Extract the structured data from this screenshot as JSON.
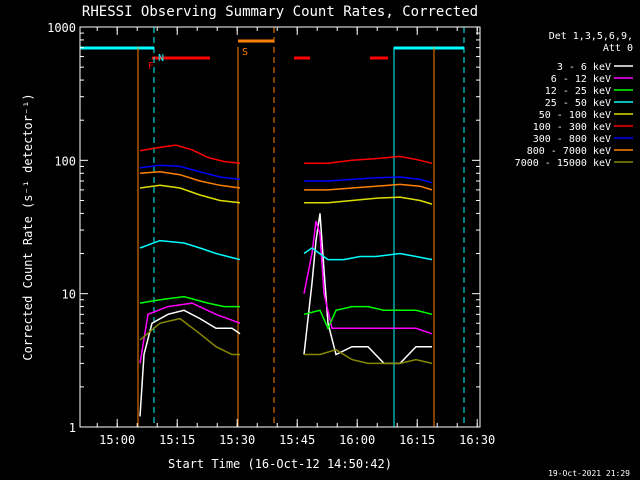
{
  "chart_data": {
    "type": "line",
    "title": "RHESSI Observing Summary Count Rates, Corrected",
    "xlabel": "Start Time (16-Oct-12 14:50:42)",
    "ylabel": "Corrected Count Rate (s⁻¹ detector⁻¹)",
    "y_scale": "log",
    "ylim": [
      1,
      1000
    ],
    "xlim_minutes_after_start": [
      0,
      100
    ],
    "x_tick_labels": [
      "15:00",
      "15:15",
      "15:30",
      "15:45",
      "16:00",
      "16:15",
      "16:30"
    ],
    "x_tick_minutes": [
      9.3,
      24.3,
      39.3,
      54.3,
      69.3,
      84.3,
      99.3
    ],
    "y_tick_labels": [
      "1",
      "10",
      "100",
      "1000"
    ],
    "y_tick_values": [
      1,
      10,
      100,
      1000
    ],
    "legend_header": [
      "Det 1,3,5,6,9,",
      "Att 0"
    ],
    "legend_placement": "right",
    "series": [
      {
        "name": "3 - 6 keV",
        "color": "#ffffff",
        "segments": [
          [
            [
              15,
              1.2
            ],
            [
              16,
              3.5
            ],
            [
              18,
              6
            ],
            [
              22,
              7
            ],
            [
              26,
              7.5
            ],
            [
              30,
              6.5
            ],
            [
              34,
              5.5
            ],
            [
              38,
              5.5
            ],
            [
              40,
              5
            ]
          ],
          [
            [
              56,
              3.5
            ],
            [
              58,
              12
            ],
            [
              59,
              25
            ],
            [
              60,
              40
            ],
            [
              61,
              15
            ],
            [
              62,
              6
            ],
            [
              64,
              3.5
            ],
            [
              68,
              4
            ],
            [
              72,
              4
            ],
            [
              76,
              3
            ],
            [
              80,
              3
            ],
            [
              84,
              4
            ],
            [
              88,
              4
            ]
          ]
        ]
      },
      {
        "name": "6 - 12 keV",
        "color": "#ff00ff",
        "segments": [
          [
            [
              15,
              3
            ],
            [
              17,
              7
            ],
            [
              22,
              8
            ],
            [
              28,
              8.5
            ],
            [
              34,
              7
            ],
            [
              40,
              6
            ]
          ],
          [
            [
              56,
              10
            ],
            [
              58,
              20
            ],
            [
              59,
              35
            ],
            [
              60,
              28
            ],
            [
              61,
              10
            ],
            [
              63,
              5.5
            ],
            [
              68,
              5.5
            ],
            [
              72,
              5.5
            ],
            [
              76,
              5.5
            ],
            [
              80,
              5.5
            ],
            [
              84,
              5.5
            ],
            [
              88,
              5
            ]
          ]
        ]
      },
      {
        "name": "12 - 25 keV",
        "color": "#00ff00",
        "segments": [
          [
            [
              15,
              8.5
            ],
            [
              20,
              9
            ],
            [
              26,
              9.5
            ],
            [
              32,
              8.5
            ],
            [
              36,
              8
            ],
            [
              40,
              8
            ]
          ],
          [
            [
              56,
              7
            ],
            [
              60,
              7.5
            ],
            [
              62,
              5.5
            ],
            [
              64,
              7.5
            ],
            [
              68,
              8
            ],
            [
              72,
              8
            ],
            [
              76,
              7.5
            ],
            [
              80,
              7.5
            ],
            [
              84,
              7.5
            ],
            [
              88,
              7
            ]
          ]
        ]
      },
      {
        "name": "25 - 50 keV",
        "color": "#00ffff",
        "segments": [
          [
            [
              15,
              22
            ],
            [
              20,
              25
            ],
            [
              26,
              24
            ],
            [
              30,
              22
            ],
            [
              34,
              20
            ],
            [
              40,
              18
            ]
          ],
          [
            [
              56,
              20
            ],
            [
              58,
              22
            ],
            [
              62,
              18
            ],
            [
              66,
              18
            ],
            [
              70,
              19
            ],
            [
              74,
              19
            ],
            [
              80,
              20
            ],
            [
              84,
              19
            ],
            [
              88,
              18
            ]
          ]
        ]
      },
      {
        "name": "50 - 100 keV",
        "color": "#dddd00",
        "segments": [
          [
            [
              15,
              62
            ],
            [
              20,
              65
            ],
            [
              25,
              62
            ],
            [
              30,
              55
            ],
            [
              35,
              50
            ],
            [
              40,
              48
            ]
          ],
          [
            [
              56,
              48
            ],
            [
              62,
              48
            ],
            [
              68,
              50
            ],
            [
              74,
              52
            ],
            [
              80,
              53
            ],
            [
              85,
              50
            ],
            [
              88,
              47
            ]
          ]
        ]
      },
      {
        "name": "100 - 300 keV",
        "color": "#ff0000",
        "segments": [
          [
            [
              15,
              118
            ],
            [
              20,
              125
            ],
            [
              24,
              130
            ],
            [
              28,
              120
            ],
            [
              32,
              105
            ],
            [
              36,
              98
            ],
            [
              40,
              95
            ]
          ],
          [
            [
              56,
              95
            ],
            [
              62,
              95
            ],
            [
              68,
              100
            ],
            [
              74,
              103
            ],
            [
              80,
              107
            ],
            [
              85,
              100
            ],
            [
              88,
              95
            ]
          ]
        ]
      },
      {
        "name": "300 - 800 keV",
        "color": "#0000ff",
        "segments": [
          [
            [
              15,
              88
            ],
            [
              20,
              92
            ],
            [
              25,
              90
            ],
            [
              30,
              82
            ],
            [
              35,
              75
            ],
            [
              40,
              72
            ]
          ],
          [
            [
              56,
              70
            ],
            [
              62,
              70
            ],
            [
              68,
              72
            ],
            [
              74,
              74
            ],
            [
              80,
              75
            ],
            [
              85,
              72
            ],
            [
              88,
              68
            ]
          ]
        ]
      },
      {
        "name": "800 - 7000 keV",
        "color": "#ff8000",
        "segments": [
          [
            [
              15,
              80
            ],
            [
              20,
              82
            ],
            [
              25,
              78
            ],
            [
              30,
              70
            ],
            [
              35,
              65
            ],
            [
              40,
              62
            ]
          ],
          [
            [
              56,
              60
            ],
            [
              62,
              60
            ],
            [
              68,
              62
            ],
            [
              74,
              64
            ],
            [
              80,
              66
            ],
            [
              85,
              64
            ],
            [
              88,
              60
            ]
          ]
        ]
      },
      {
        "name": "7000 - 15000 keV",
        "color": "#888800",
        "segments": [
          [
            [
              15,
              4.5
            ],
            [
              20,
              6
            ],
            [
              25,
              6.5
            ],
            [
              30,
              5
            ],
            [
              34,
              4
            ],
            [
              38,
              3.5
            ],
            [
              40,
              3.5
            ]
          ],
          [
            [
              56,
              3.5
            ],
            [
              60,
              3.5
            ],
            [
              64,
              3.8
            ],
            [
              68,
              3.2
            ],
            [
              72,
              3
            ],
            [
              76,
              3
            ],
            [
              80,
              3
            ],
            [
              84,
              3.2
            ],
            [
              88,
              3
            ]
          ]
        ]
      }
    ],
    "annotations": [
      {
        "text": "N",
        "color": "#00ffff",
        "x_min": 19.5,
        "y_frac": 0.95
      },
      {
        "text": "F",
        "color": "#ff0000",
        "x_min": 17,
        "y_frac": 0.93
      },
      {
        "text": "S",
        "color": "#ff8000",
        "x_min": 40.5,
        "y_frac": 0.965
      }
    ]
  },
  "footer_date": "19-Oct-2021 21:29"
}
